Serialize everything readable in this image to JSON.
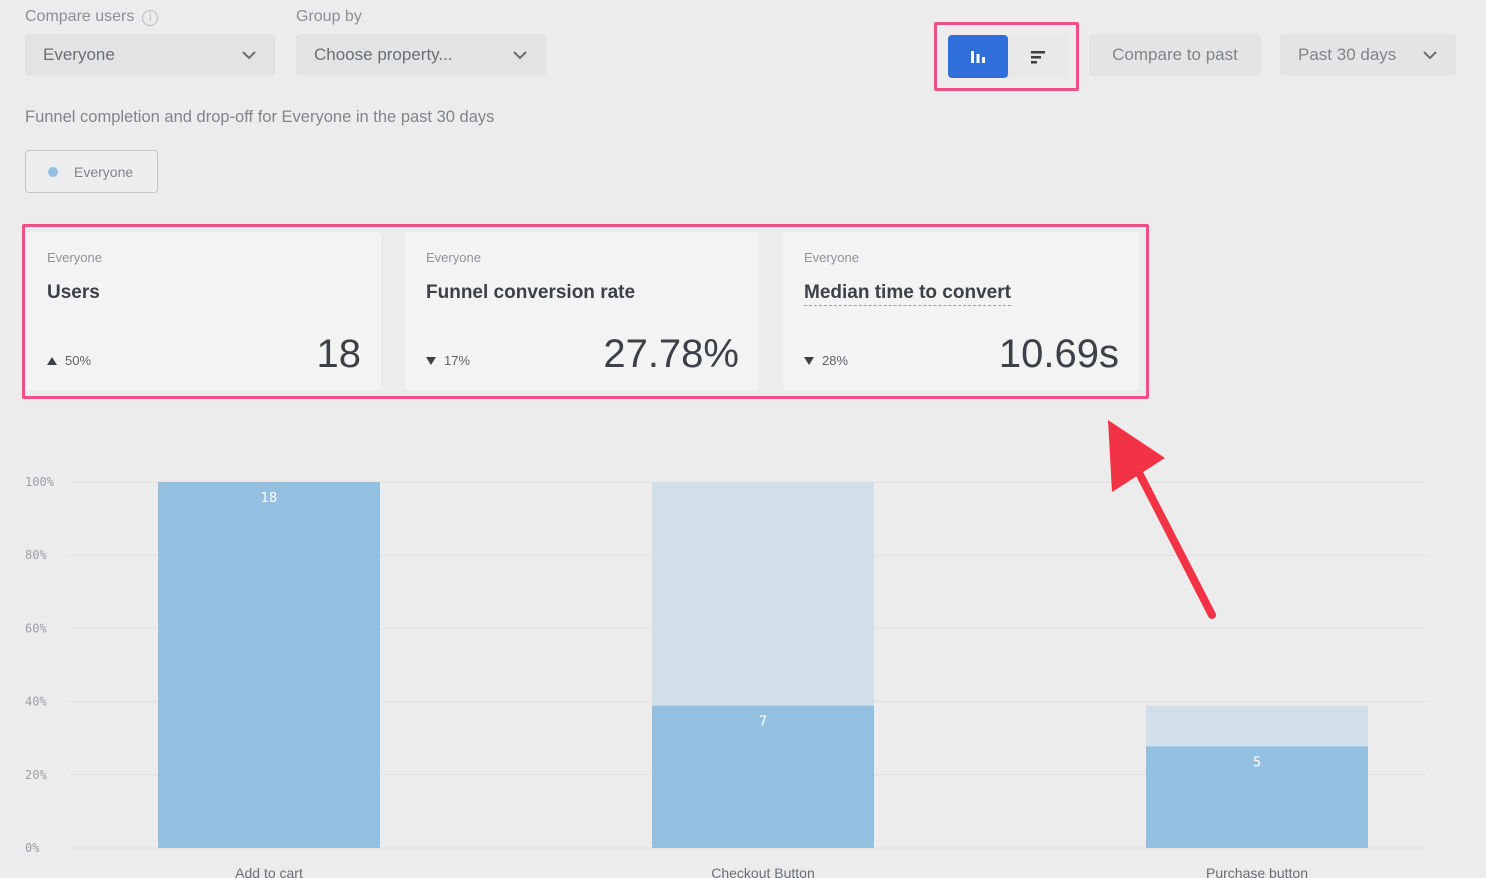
{
  "filters": {
    "compare_label": "Compare users",
    "compare_value": "Everyone",
    "group_label": "Group by",
    "group_value": "Choose property..."
  },
  "toolbar": {
    "view_toggle": {
      "active": "vertical-bars",
      "options": [
        "vertical-bars-icon",
        "horizontal-bars-icon"
      ]
    },
    "compare_past_label": "Compare to past",
    "range_label": "Past 30 days"
  },
  "summary": {
    "prefix": "Funnel completion and drop-off",
    "mid1": "for",
    "segment": "Everyone",
    "mid2": "in the",
    "period": "past 30 days"
  },
  "legend": {
    "label": "Everyone",
    "color": "#93bfe0"
  },
  "cards": [
    {
      "segment": "Everyone",
      "title": "Users",
      "delta": "50%",
      "direction": "up",
      "value": "18"
    },
    {
      "segment": "Everyone",
      "title": "Funnel conversion rate",
      "delta": "17%",
      "direction": "down",
      "value": "27.78%"
    },
    {
      "segment": "Everyone",
      "title": "Median time to convert",
      "delta": "28%",
      "direction": "down",
      "value": "10.69s"
    }
  ],
  "chart_data": {
    "type": "bar",
    "categories": [
      "Add to cart",
      "Checkout Button",
      "Purchase button"
    ],
    "values": [
      100,
      38.89,
      27.78
    ],
    "previous_step": [
      100,
      100,
      38.89
    ],
    "data_labels": [
      "18",
      "7",
      "5"
    ],
    "yticks": [
      "0%",
      "20%",
      "40%",
      "60%",
      "80%",
      "100%"
    ],
    "ylim": [
      0,
      100
    ],
    "colors": {
      "bar": "#93bfe0",
      "dropoff": "#d1dfe9",
      "grid": "#e0e0e0"
    }
  },
  "colors": {
    "accent": "#2f6fdc",
    "highlight": "#ef4f86",
    "arrow": "#f23245"
  }
}
